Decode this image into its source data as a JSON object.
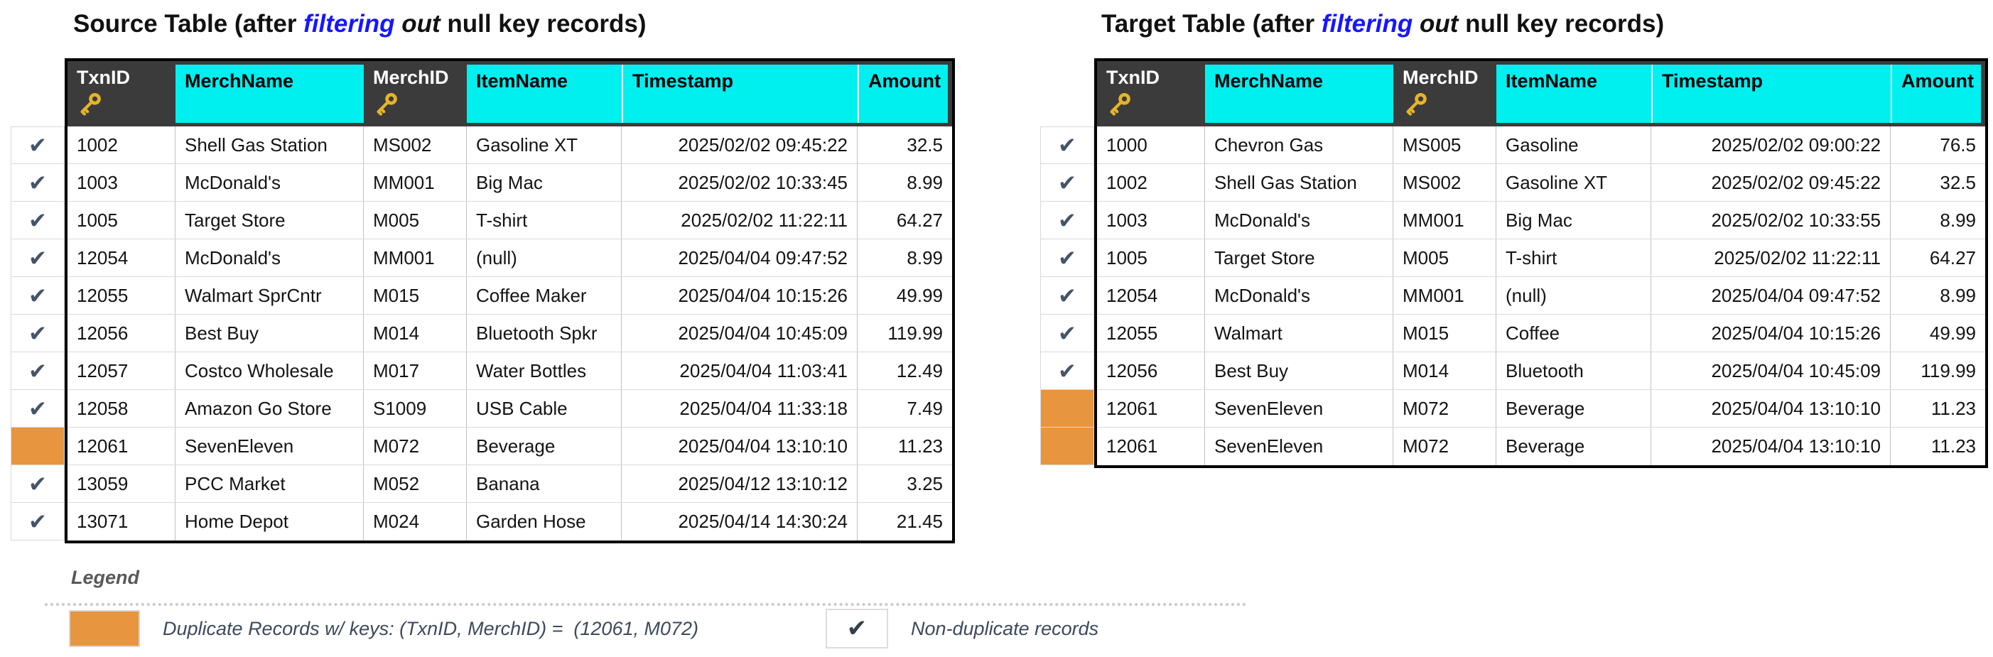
{
  "colors": {
    "header_cyan": "#00F0F0",
    "header_dark": "#3B3B3B",
    "duplicate_orange": "#E8953F",
    "check_mark": "#44546A",
    "title_highlight_blue": "#1616FF"
  },
  "icons": {
    "check": "✔",
    "key": "key-icon"
  },
  "columns": [
    {
      "label": "TxnID",
      "key": true
    },
    {
      "label": "MerchName",
      "key": false
    },
    {
      "label": "MerchID",
      "key": true
    },
    {
      "label": "ItemName",
      "key": false
    },
    {
      "label": "Timestamp",
      "key": false
    },
    {
      "label": "Amount",
      "key": false
    }
  ],
  "source": {
    "title": {
      "pre": "Source Table (after ",
      "highlight": "filtering ",
      "emphasis": "out ",
      "post": "null key records)"
    },
    "rows": [
      {
        "status": "check",
        "cells": [
          "1002",
          "Shell Gas Station",
          "MS002",
          "Gasoline XT",
          "2025/02/02 09:45:22",
          "32.5"
        ]
      },
      {
        "status": "check",
        "cells": [
          "1003",
          "McDonald's",
          "MM001",
          "Big Mac",
          "2025/02/02 10:33:45",
          "8.99"
        ]
      },
      {
        "status": "check",
        "cells": [
          "1005",
          "Target Store",
          "M005",
          "T-shirt",
          "2025/02/02 11:22:11",
          "64.27"
        ]
      },
      {
        "status": "check",
        "cells": [
          "12054",
          "McDonald's",
          "MM001",
          "(null)",
          "2025/04/04 09:47:52",
          "8.99"
        ]
      },
      {
        "status": "check",
        "cells": [
          "12055",
          "Walmart SprCntr",
          "M015",
          "Coffee Maker",
          "2025/04/04 10:15:26",
          "49.99"
        ]
      },
      {
        "status": "check",
        "cells": [
          "12056",
          "Best Buy",
          "M014",
          "Bluetooth Spkr",
          "2025/04/04 10:45:09",
          "119.99"
        ]
      },
      {
        "status": "check",
        "cells": [
          "12057",
          "Costco Wholesale",
          "M017",
          "Water Bottles",
          "2025/04/04 11:03:41",
          "12.49"
        ]
      },
      {
        "status": "check",
        "cells": [
          "12058",
          "Amazon Go Store",
          "S1009",
          "USB Cable",
          "2025/04/04 11:33:18",
          "7.49"
        ]
      },
      {
        "status": "dup",
        "cells": [
          "12061",
          "SevenEleven",
          "M072",
          "Beverage",
          "2025/04/04 13:10:10",
          "11.23"
        ]
      },
      {
        "status": "check",
        "cells": [
          "13059",
          "PCC Market",
          "M052",
          "Banana",
          "2025/04/12 13:10:12",
          "3.25"
        ]
      },
      {
        "status": "check",
        "cells": [
          "13071",
          "Home Depot",
          "M024",
          "Garden Hose",
          "2025/04/14 14:30:24",
          "21.45"
        ]
      }
    ]
  },
  "target": {
    "title": {
      "pre": "Target Table (after ",
      "highlight": "filtering ",
      "emphasis": "out ",
      "post": "null key records)"
    },
    "rows": [
      {
        "status": "check",
        "cells": [
          "1000",
          "Chevron Gas",
          "MS005",
          "Gasoline",
          "2025/02/02 09:00:22",
          "76.5"
        ]
      },
      {
        "status": "check",
        "cells": [
          "1002",
          "Shell Gas Station",
          "MS002",
          "Gasoline XT",
          "2025/02/02 09:45:22",
          "32.5"
        ]
      },
      {
        "status": "check",
        "cells": [
          "1003",
          "McDonald's",
          "MM001",
          "Big Mac",
          "2025/02/02 10:33:55",
          "8.99"
        ]
      },
      {
        "status": "check",
        "cells": [
          "1005",
          "Target Store",
          "M005",
          "T-shirt",
          "2025/02/02 11:22:11",
          "64.27"
        ]
      },
      {
        "status": "check",
        "cells": [
          "12054",
          "McDonald's",
          "MM001",
          "(null)",
          "2025/04/04 09:47:52",
          "8.99"
        ]
      },
      {
        "status": "check",
        "cells": [
          "12055",
          "Walmart",
          "M015",
          "Coffee",
          "2025/04/04 10:15:26",
          "49.99"
        ]
      },
      {
        "status": "check",
        "cells": [
          "12056",
          "Best Buy",
          "M014",
          "Bluetooth",
          "2025/04/04 10:45:09",
          "119.99"
        ]
      },
      {
        "status": "dup",
        "cells": [
          "12061",
          "SevenEleven",
          "M072",
          "Beverage",
          "2025/04/04 13:10:10",
          "11.23"
        ]
      },
      {
        "status": "dup",
        "cells": [
          "12061",
          "SevenEleven",
          "M072",
          "Beverage",
          "2025/04/04 13:10:10",
          "11.23"
        ]
      }
    ]
  },
  "legend": {
    "title": "Legend",
    "duplicate_label": "Duplicate Records w/ keys: (TxnID, MerchID) =  (12061, M072)",
    "nondup_label": "Non-duplicate records"
  }
}
